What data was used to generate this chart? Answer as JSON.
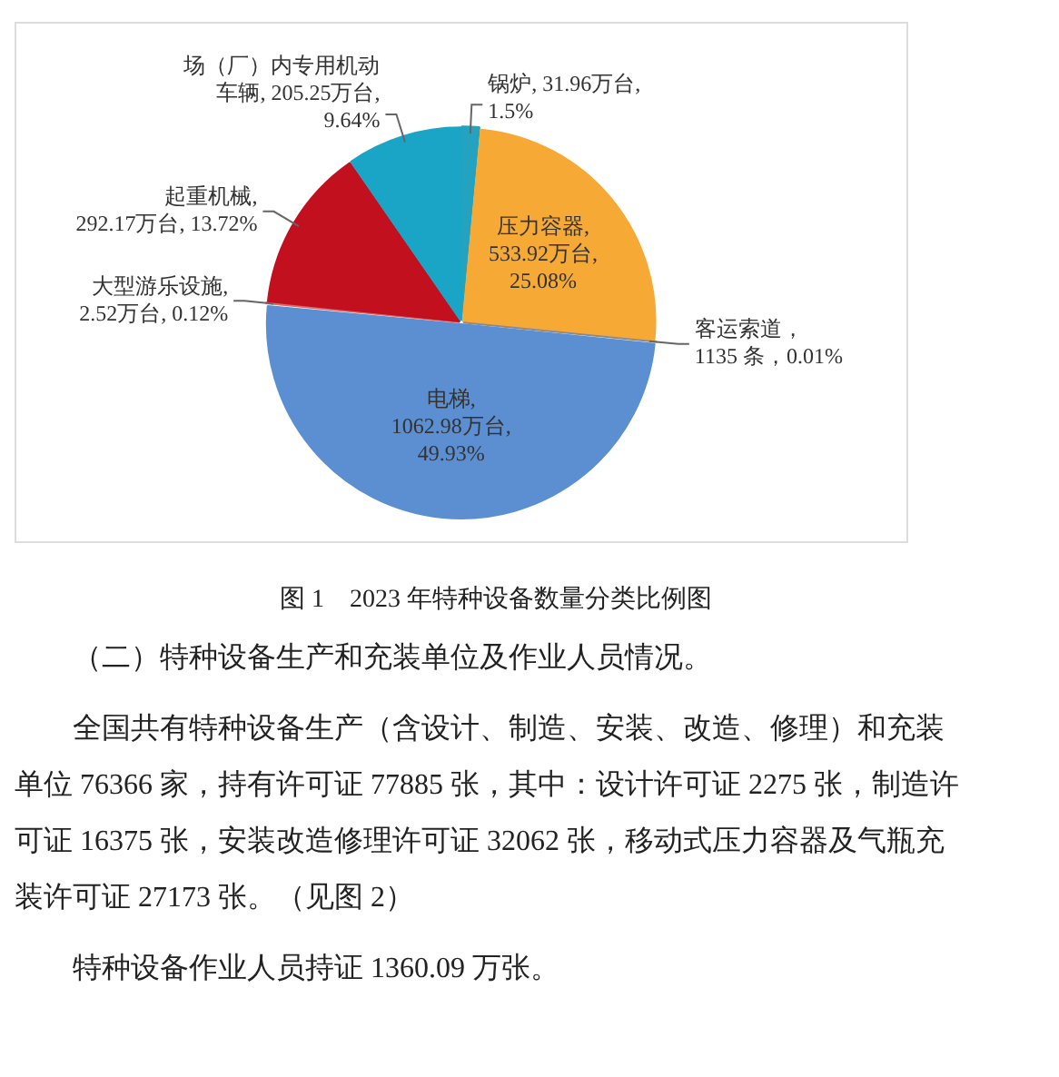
{
  "chart_data": {
    "type": "pie",
    "title": "图 1　2023 年特种设备数量分类比例图",
    "categories": [
      "锅炉",
      "压力容器",
      "客运索道",
      "电梯",
      "大型游乐设施",
      "起重机械",
      "场（厂）内专用机动车辆"
    ],
    "values": [
      1.5,
      25.08,
      0.01,
      49.93,
      0.12,
      13.72,
      9.64
    ],
    "value_labels": [
      ", 31.96万台, 1.5%",
      ", 533.92万台, 25.08%",
      "，1135 条，0.01%",
      ", 1062.98万台, 49.93%",
      ", 2.52万台, 0.12%",
      ", 292.17万台, 13.72%",
      ", 205.25万台, 9.64%"
    ],
    "colors": [
      "#23a3c0",
      "#f7a935",
      "#8a8a8a",
      "#5b8fd2",
      "#d96a6a",
      "#c2101f",
      "#1aa5c6"
    ],
    "legend": false,
    "annotations": [
      "（二）特种设备生产和充装单位及作业人员情况。",
      "全国共有特种设备生产（含设计、制造、安装、改造、修理）和充装单位 76366 家，持有许可证 77885 张，其中：设计许可证 2275 张，制造许可证 16375 张，安装改造修理许可证 32062 张，移动式压力容器及气瓶充装许可证 27173 张。（见图 2）",
      "特种设备作业人员持证 1360.09 万张。"
    ]
  }
}
